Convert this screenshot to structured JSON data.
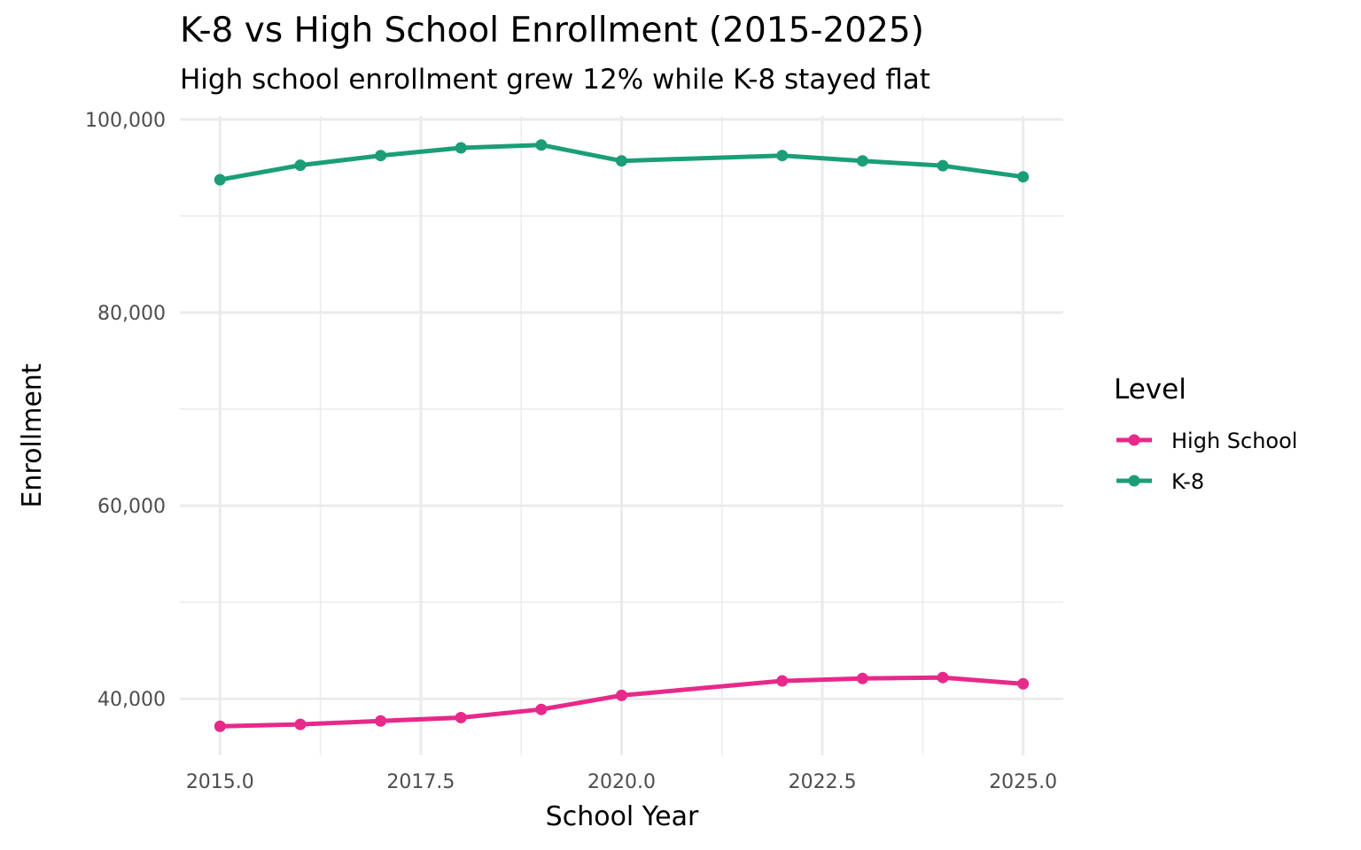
{
  "chart_data": {
    "type": "line",
    "title": "K-8 vs High School Enrollment (2015-2025)",
    "subtitle": "High school enrollment grew 12% while K-8 stayed flat",
    "xlabel": "School Year",
    "ylabel": "Enrollment",
    "xlim": [
      2014.5,
      2025.5
    ],
    "ylim": [
      34150,
      100350
    ],
    "x_ticks": [
      "2015.0",
      "2017.5",
      "2020.0",
      "2022.5",
      "2025.0"
    ],
    "y_ticks": [
      "40,000",
      "60,000",
      "80,000",
      "100,000"
    ],
    "grid": true,
    "legend": {
      "title": "Level",
      "placement": "right"
    },
    "x": [
      2015,
      2016,
      2017,
      2018,
      2019,
      2020,
      2022,
      2023,
      2024,
      2025
    ],
    "series": [
      {
        "name": "High School",
        "color": "#E7298A",
        "values": [
          37150,
          37350,
          37700,
          38050,
          38900,
          40350,
          41850,
          42100,
          42200,
          41550
        ]
      },
      {
        "name": "K-8",
        "color": "#1B9E77",
        "values": [
          93750,
          95250,
          96250,
          97050,
          97350,
          95700,
          96250,
          95700,
          95200,
          94050
        ]
      }
    ]
  }
}
